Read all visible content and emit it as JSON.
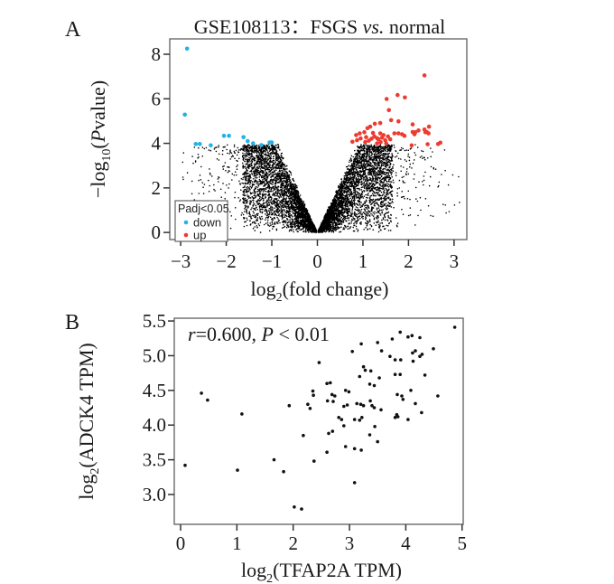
{
  "figure": {
    "panel_a_label": "A",
    "panel_b_label": "B"
  },
  "colors": {
    "down": "#22b2e5",
    "up": "#ee3b30",
    "nonsig": "#000000",
    "axis": "#6a6a6a",
    "tick": "#333333"
  },
  "chart_data": [
    {
      "id": "volcano",
      "type": "scatter",
      "title": {
        "text": "GSE108113：FSGS ",
        "italic": "vs.",
        "suffix": " normal"
      },
      "xlabel": {
        "pre": "log",
        "sub": "2",
        "post": "(fold change)"
      },
      "ylabel": {
        "pre": "−log",
        "sub": "10",
        "open": "(",
        "p_italic": "P",
        "post": "value)"
      },
      "xlim": [
        -3.24,
        3.28
      ],
      "ylim": [
        -0.32,
        8.69
      ],
      "xticks": {
        "values": [
          -3,
          -2,
          -1,
          0,
          1,
          2,
          3
        ],
        "labels": [
          "−3",
          "−2",
          "−1",
          "0",
          "1",
          "2",
          "3"
        ]
      },
      "yticks": {
        "values": [
          0,
          2,
          4,
          6,
          8
        ],
        "labels": [
          "0",
          "2",
          "4",
          "6",
          "8"
        ]
      },
      "grid": false,
      "legend": {
        "title": "Padj<0.05",
        "position": "bottom-left-inside",
        "items": [
          {
            "label": "down",
            "color": "#22b2e5"
          },
          {
            "label": "up",
            "color": "#ee3b30"
          }
        ]
      },
      "series": [
        {
          "name": "down",
          "color": "#22b2e5",
          "points": [
            [
              -2.86,
              8.25
            ],
            [
              -2.91,
              5.29
            ],
            [
              -2.67,
              3.97
            ],
            [
              -2.58,
              3.97
            ],
            [
              -2.34,
              3.91
            ],
            [
              -2.05,
              4.34
            ],
            [
              -1.94,
              4.34
            ],
            [
              -1.62,
              4.28
            ],
            [
              -1.53,
              4.1
            ],
            [
              -1.41,
              4.0
            ],
            [
              -1.23,
              3.92
            ],
            [
              -1.05,
              4.04
            ],
            [
              -1.0,
              4.04
            ]
          ]
        },
        {
          "name": "up",
          "color": "#ee3b30",
          "points": [
            [
              2.35,
              7.05
            ],
            [
              1.52,
              5.99
            ],
            [
              1.76,
              6.17
            ],
            [
              1.92,
              6.06
            ],
            [
              1.57,
              5.49
            ],
            [
              1.62,
              5.04
            ],
            [
              1.26,
              4.88
            ],
            [
              1.38,
              4.91
            ],
            [
              1.1,
              4.68
            ],
            [
              1.16,
              4.75
            ],
            [
              0.93,
              4.45
            ],
            [
              1.03,
              4.5
            ],
            [
              0.85,
              4.37
            ],
            [
              0.77,
              4.07
            ],
            [
              0.87,
              4.14
            ],
            [
              1.19,
              4.21
            ],
            [
              1.25,
              4.31
            ],
            [
              1.31,
              4.23
            ],
            [
              1.38,
              4.45
            ],
            [
              1.45,
              4.37
            ],
            [
              1.31,
              4.0
            ],
            [
              1.39,
              4.05
            ],
            [
              1.49,
              4.14
            ],
            [
              1.51,
              4.0
            ],
            [
              1.69,
              4.45
            ],
            [
              1.78,
              4.45
            ],
            [
              1.86,
              4.41
            ],
            [
              1.91,
              4.34
            ],
            [
              2.09,
              4.51
            ],
            [
              2.13,
              4.41
            ],
            [
              2.09,
              4.85
            ],
            [
              2.15,
              4.5
            ],
            [
              2.22,
              4.58
            ],
            [
              2.07,
              3.91
            ],
            [
              2.35,
              4.62
            ],
            [
              2.4,
              4.51
            ],
            [
              2.45,
              4.75
            ],
            [
              2.37,
              4.5
            ],
            [
              2.44,
              4.45
            ],
            [
              2.42,
              3.96
            ],
            [
              2.65,
              3.97
            ],
            [
              2.7,
              4.03
            ],
            [
              1.78,
              4.99
            ],
            [
              1.07,
              4.28
            ],
            [
              1.13,
              4.12
            ],
            [
              1.22,
              4.47
            ],
            [
              1.34,
              4.18
            ],
            [
              1.42,
              4.26
            ],
            [
              1.55,
              4.31
            ],
            [
              1.6,
              4.18
            ],
            [
              1.05,
              4.06
            ],
            [
              0.95,
              4.22
            ]
          ]
        },
        {
          "name": "not-significant",
          "color": "#000000",
          "outlier_points": [
            [
              2.97,
              2.58
            ],
            [
              3.01,
              1.23
            ],
            [
              2.76,
              1.26
            ],
            [
              3.12,
              1.35
            ],
            [
              2.21,
              0.76
            ],
            [
              3.1,
              2.5
            ],
            [
              -2.95,
              2.48
            ],
            [
              -2.75,
              2.3
            ],
            [
              -2.55,
              2.95
            ],
            [
              -2.6,
              1.75
            ],
            [
              2.55,
              2.9
            ],
            [
              2.35,
              3.35
            ],
            [
              -2.2,
              3.3
            ],
            [
              -2.35,
              2.6
            ]
          ],
          "cloud": {
            "n": 8000,
            "seed": 20,
            "core_scale": 1.62,
            "core_pow": 1.5,
            "tail_prob": 0.12,
            "tail_scale": 1.35,
            "env_slope": 4.1,
            "env_cap": 3.88,
            "y_pow": 0.62,
            "x_max": 3.15
          }
        }
      ]
    },
    {
      "id": "correlation",
      "type": "scatter",
      "annotation": {
        "italic1": "r",
        "mid": "=0.600, ",
        "italic2": "P",
        "end": " < 0.01"
      },
      "xlabel": {
        "pre": "log",
        "sub": "2",
        "post": "(TFAP2A TPM)"
      },
      "ylabel": {
        "pre": "log",
        "sub": "2",
        "post": "(ADCK4 TPM)"
      },
      "xlim": [
        -0.112,
        5.02
      ],
      "ylim": [
        2.57,
        5.54
      ],
      "xticks": {
        "values": [
          0,
          1,
          2,
          3,
          4,
          5
        ],
        "labels": [
          "0",
          "1",
          "2",
          "3",
          "4",
          "5"
        ]
      },
      "yticks": {
        "values": [
          3.0,
          3.5,
          4.0,
          4.5,
          5.0,
          5.5
        ],
        "labels": [
          "3.0",
          "3.5",
          "4.0",
          "4.5",
          "5.0",
          "5.5"
        ]
      },
      "grid": false,
      "point_color": "#111111",
      "points": [
        [
          0.08,
          3.42
        ],
        [
          0.37,
          4.46
        ],
        [
          0.48,
          4.36
        ],
        [
          1.09,
          4.16
        ],
        [
          1.93,
          4.28
        ],
        [
          2.26,
          4.3
        ],
        [
          2.3,
          4.24
        ],
        [
          2.46,
          4.9
        ],
        [
          2.35,
          4.49
        ],
        [
          2.36,
          4.43
        ],
        [
          2.18,
          3.85
        ],
        [
          1.66,
          3.5
        ],
        [
          1.01,
          3.35
        ],
        [
          1.83,
          3.33
        ],
        [
          2.37,
          3.48
        ],
        [
          2.02,
          2.82
        ],
        [
          2.15,
          2.79
        ],
        [
          3.09,
          3.17
        ],
        [
          4.87,
          5.41
        ],
        [
          3.9,
          5.34
        ],
        [
          4.04,
          5.27
        ],
        [
          4.11,
          5.29
        ],
        [
          4.25,
          5.26
        ],
        [
          3.76,
          5.24
        ],
        [
          3.5,
          5.19
        ],
        [
          3.21,
          5.17
        ],
        [
          3.05,
          5.06
        ],
        [
          3.57,
          5.07
        ],
        [
          4.49,
          5.1
        ],
        [
          4.12,
          5.04
        ],
        [
          4.17,
          5.07
        ],
        [
          4.25,
          4.99
        ],
        [
          4.29,
          5.02
        ],
        [
          3.72,
          4.99
        ],
        [
          3.81,
          4.94
        ],
        [
          3.91,
          4.94
        ],
        [
          4.13,
          4.92
        ],
        [
          3.25,
          4.84
        ],
        [
          3.28,
          4.79
        ],
        [
          3.38,
          4.78
        ],
        [
          3.81,
          4.73
        ],
        [
          3.9,
          4.73
        ],
        [
          4.34,
          4.72
        ],
        [
          3.18,
          4.7
        ],
        [
          3.53,
          4.68
        ],
        [
          2.6,
          4.6
        ],
        [
          2.66,
          4.61
        ],
        [
          3.36,
          4.59
        ],
        [
          3.44,
          4.57
        ],
        [
          2.93,
          4.5
        ],
        [
          2.99,
          4.48
        ],
        [
          2.69,
          4.44
        ],
        [
          2.74,
          4.42
        ],
        [
          4.09,
          4.5
        ],
        [
          3.85,
          4.44
        ],
        [
          3.93,
          4.42
        ],
        [
          4.57,
          4.42
        ],
        [
          2.61,
          4.35
        ],
        [
          2.71,
          4.34
        ],
        [
          2.9,
          4.27
        ],
        [
          2.96,
          4.29
        ],
        [
          3.13,
          4.31
        ],
        [
          3.2,
          4.3
        ],
        [
          3.25,
          4.28
        ],
        [
          3.37,
          4.35
        ],
        [
          3.4,
          4.28
        ],
        [
          3.44,
          4.25
        ],
        [
          4.17,
          4.31
        ],
        [
          3.95,
          4.37
        ],
        [
          3.56,
          4.22
        ],
        [
          4.28,
          4.18
        ],
        [
          3.84,
          4.15
        ],
        [
          3.86,
          4.12
        ],
        [
          3.81,
          4.11
        ],
        [
          4.04,
          4.08
        ],
        [
          3.09,
          4.08
        ],
        [
          3.18,
          4.07
        ],
        [
          3.22,
          4.11
        ],
        [
          2.81,
          4.11
        ],
        [
          2.86,
          4.08
        ],
        [
          2.9,
          3.99
        ],
        [
          2.63,
          3.88
        ],
        [
          2.7,
          3.91
        ],
        [
          3.45,
          3.98
        ],
        [
          3.36,
          3.86
        ],
        [
          3.5,
          3.76
        ],
        [
          2.93,
          3.69
        ],
        [
          3.09,
          3.66
        ],
        [
          3.21,
          3.64
        ],
        [
          2.6,
          3.61
        ]
      ]
    }
  ]
}
